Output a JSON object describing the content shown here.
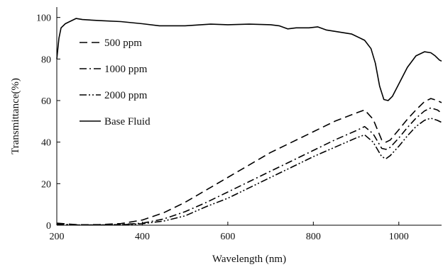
{
  "chart_data": {
    "type": "line",
    "title": "",
    "xlabel": "Wavelength  (nm)",
    "ylabel": "Transmittance(%)",
    "xlim": [
      200,
      1100
    ],
    "ylim": [
      0,
      105
    ],
    "x_ticks": [
      200,
      400,
      600,
      800,
      1000
    ],
    "y_ticks": [
      0,
      20,
      40,
      60,
      80,
      100
    ],
    "grid": false,
    "legend_position": "top-left",
    "series": [
      {
        "name": "500 ppm",
        "dash": "dash",
        "x": [
          200,
          250,
          300,
          350,
          400,
          450,
          500,
          550,
          600,
          650,
          700,
          750,
          800,
          850,
          900,
          920,
          940,
          960,
          970,
          980,
          1000,
          1020,
          1040,
          1060,
          1075,
          1090,
          1100
        ],
        "y": [
          1,
          0.2,
          0.3,
          0.8,
          2.5,
          6,
          11,
          17,
          23,
          29,
          35,
          40,
          45,
          50,
          54,
          55.5,
          51,
          41,
          40,
          41,
          46,
          51,
          55.5,
          59.5,
          61,
          60,
          59
        ]
      },
      {
        "name": "1000 ppm",
        "dash": "dashdot",
        "x": [
          200,
          250,
          300,
          350,
          400,
          450,
          500,
          550,
          600,
          650,
          700,
          750,
          800,
          850,
          900,
          920,
          940,
          960,
          970,
          980,
          1000,
          1020,
          1040,
          1060,
          1075,
          1090,
          1100
        ],
        "y": [
          0.5,
          0.1,
          0.1,
          0.3,
          1,
          3,
          6.5,
          11,
          16,
          21,
          26,
          31,
          36,
          41,
          45.5,
          47.5,
          44,
          37,
          36.5,
          37.5,
          42,
          47,
          51.5,
          55,
          56.5,
          55.5,
          54
        ]
      },
      {
        "name": "2000 ppm",
        "dash": "dashdotdot",
        "x": [
          200,
          250,
          300,
          350,
          400,
          450,
          500,
          550,
          600,
          650,
          700,
          750,
          800,
          850,
          900,
          920,
          940,
          960,
          970,
          980,
          1000,
          1020,
          1040,
          1060,
          1075,
          1090,
          1100
        ],
        "y": [
          0.3,
          0.1,
          0.1,
          0.2,
          0.7,
          2,
          4.5,
          9,
          13,
          18,
          23,
          28,
          33,
          37.5,
          42,
          43.5,
          40,
          33,
          32,
          33.5,
          38,
          43,
          47.5,
          50.5,
          51.5,
          50.5,
          49.5
        ]
      },
      {
        "name": "Base Fluid",
        "dash": "solid",
        "x": [
          200,
          205,
          210,
          220,
          230,
          245,
          260,
          300,
          350,
          400,
          440,
          500,
          560,
          600,
          650,
          700,
          720,
          740,
          760,
          790,
          810,
          830,
          860,
          890,
          920,
          935,
          945,
          955,
          965,
          975,
          985,
          1000,
          1020,
          1040,
          1060,
          1075,
          1085,
          1095,
          1100
        ],
        "y": [
          80,
          90,
          95,
          97,
          98,
          99.5,
          99,
          98.5,
          98,
          97,
          96,
          96,
          96.8,
          96.5,
          96.8,
          96.5,
          96,
          94.5,
          95,
          95,
          95.5,
          94,
          93,
          92,
          89,
          85,
          78,
          67,
          60.5,
          60,
          62,
          68,
          76,
          81.5,
          83.5,
          83,
          81.5,
          79.5,
          79
        ]
      }
    ]
  }
}
